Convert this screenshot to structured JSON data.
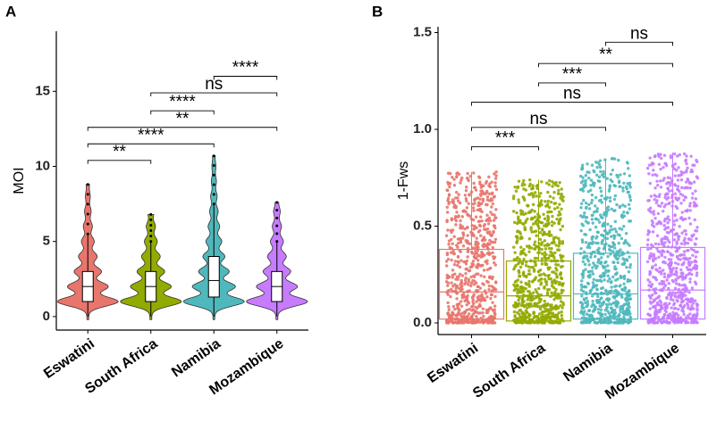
{
  "chart_data": [
    {
      "type": "violin",
      "panel": "A",
      "ylabel": "MOI",
      "categories": [
        "Eswatini",
        "South Africa",
        "Namibia",
        "Mozambique"
      ],
      "colors": [
        "#e8766d",
        "#93aa00",
        "#4fb8bc",
        "#c77cff"
      ],
      "boxes": [
        {
          "q1": 1,
          "median": 2,
          "q3": 3,
          "whisker_low": 0,
          "whisker_high": 5.5,
          "max": 8.8
        },
        {
          "q1": 1,
          "median": 2,
          "q3": 3,
          "whisker_low": 0,
          "whisker_high": 5,
          "max": 6.8
        },
        {
          "q1": 1.3,
          "median": 2.4,
          "q3": 4,
          "whisker_low": 0,
          "whisker_high": 7.5,
          "max": 10.7
        },
        {
          "q1": 1,
          "median": 2,
          "q3": 3,
          "whisker_low": 0,
          "whisker_high": 5,
          "max": 7.6
        }
      ],
      "comparisons": [
        {
          "from": 0,
          "to": 1,
          "y": 10.4,
          "label": "**"
        },
        {
          "from": 0,
          "to": 2,
          "y": 11.5,
          "label": "****"
        },
        {
          "from": 0,
          "to": 3,
          "y": 12.6,
          "label": "**"
        },
        {
          "from": 1,
          "to": 2,
          "y": 13.7,
          "label": "****"
        },
        {
          "from": 1,
          "to": 3,
          "y": 14.9,
          "label": "ns"
        },
        {
          "from": 2,
          "to": 3,
          "y": 16.0,
          "label": "****"
        }
      ],
      "ylim": [
        -0.9,
        19
      ],
      "yticks": [
        0,
        5,
        10,
        15
      ]
    },
    {
      "type": "box",
      "panel": "B",
      "ylabel": "1-Fws",
      "categories": [
        "Eswatini",
        "South Africa",
        "Namibia",
        "Mozambique"
      ],
      "colors": [
        "#e8766d",
        "#93aa00",
        "#4fb8bc",
        "#c77cff"
      ],
      "boxes": [
        {
          "q1": 0.02,
          "median": 0.16,
          "q3": 0.38,
          "whisker_low": 0,
          "whisker_high": 0.78,
          "max": 0.78
        },
        {
          "q1": 0.01,
          "median": 0.14,
          "q3": 0.32,
          "whisker_low": 0,
          "whisker_high": 0.74,
          "max": 0.74
        },
        {
          "q1": 0.02,
          "median": 0.15,
          "q3": 0.36,
          "whisker_low": 0,
          "whisker_high": 0.85,
          "max": 0.85
        },
        {
          "q1": 0.02,
          "median": 0.17,
          "q3": 0.39,
          "whisker_low": 0,
          "whisker_high": 0.88,
          "max": 0.88
        }
      ],
      "comparisons": [
        {
          "from": 0,
          "to": 1,
          "y": 0.91,
          "label": "***"
        },
        {
          "from": 0,
          "to": 2,
          "y": 1.01,
          "label": "ns"
        },
        {
          "from": 0,
          "to": 3,
          "y": 1.14,
          "label": "ns"
        },
        {
          "from": 1,
          "to": 2,
          "y": 1.24,
          "label": "***"
        },
        {
          "from": 1,
          "to": 3,
          "y": 1.34,
          "label": "**"
        },
        {
          "from": 2,
          "to": 3,
          "y": 1.45,
          "label": "ns"
        }
      ],
      "ylim": [
        -0.06,
        1.53
      ],
      "yticks": [
        {
          "value": 0,
          "label": "0.0"
        },
        0.5,
        {
          "value": 1,
          "label": "1.0"
        },
        1.5
      ]
    }
  ]
}
